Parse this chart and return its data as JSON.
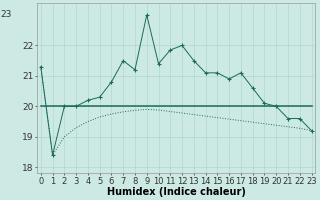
{
  "title": "",
  "xlabel": "Humidex (Indice chaleur)",
  "ylabel": "",
  "background_color": "#cce9e4",
  "grid_color": "#b0d8d2",
  "line_color": "#1a6b5a",
  "x_values": [
    0,
    1,
    2,
    3,
    4,
    5,
    6,
    7,
    8,
    9,
    10,
    11,
    12,
    13,
    14,
    15,
    16,
    17,
    18,
    19,
    20,
    21,
    22,
    23
  ],
  "y_series1": [
    21.3,
    18.4,
    20.0,
    20.0,
    20.2,
    20.3,
    20.8,
    21.5,
    21.2,
    23.0,
    21.4,
    21.85,
    22.0,
    21.5,
    21.1,
    21.1,
    20.9,
    21.1,
    20.6,
    20.1,
    20.0,
    19.6,
    19.6,
    19.2
  ],
  "y_series2": [
    21.3,
    18.4,
    19.0,
    19.3,
    19.5,
    19.65,
    19.75,
    19.82,
    19.87,
    19.9,
    19.88,
    19.83,
    19.78,
    19.73,
    19.68,
    19.63,
    19.58,
    19.53,
    19.48,
    19.43,
    19.38,
    19.33,
    19.28,
    19.2
  ],
  "y_series3": [
    20.0,
    20.0,
    20.0,
    20.0,
    20.0,
    20.0,
    20.0,
    20.0,
    20.0,
    20.0,
    20.0,
    20.0,
    20.0,
    20.0,
    20.0,
    20.0,
    20.0,
    20.0,
    20.0,
    20.0,
    20.0,
    20.0,
    20.0,
    20.0
  ],
  "ylim": [
    17.8,
    23.4
  ],
  "yticks": [
    18,
    19,
    20,
    21,
    22
  ],
  "xtick_labels": [
    "0",
    "1",
    "2",
    "3",
    "4",
    "5",
    "6",
    "7",
    "8",
    "9",
    "10",
    "11",
    "12",
    "13",
    "14",
    "15",
    "16",
    "17",
    "18",
    "19",
    "20",
    "21",
    "22",
    "23"
  ],
  "xlabel_fontsize": 7,
  "tick_fontsize": 6.5,
  "ytick_label_top": "23"
}
